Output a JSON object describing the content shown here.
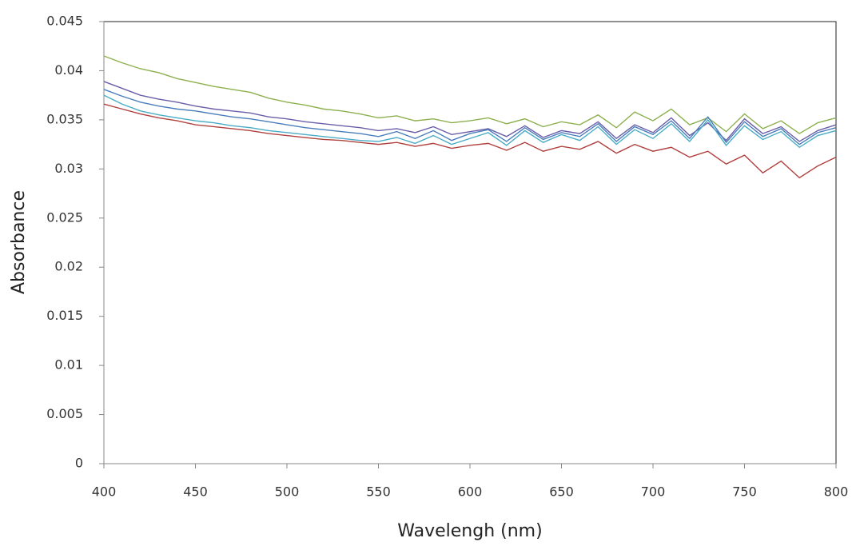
{
  "chart_data": {
    "type": "line",
    "x_label": "Wavelengh (nm)",
    "y_label": "Absorbance",
    "x": [
      400,
      410,
      420,
      430,
      440,
      450,
      460,
      470,
      480,
      490,
      500,
      510,
      520,
      530,
      540,
      550,
      560,
      570,
      580,
      590,
      600,
      610,
      620,
      630,
      640,
      650,
      660,
      670,
      680,
      690,
      700,
      710,
      720,
      730,
      740,
      750,
      760,
      770,
      780,
      790,
      800
    ],
    "series": [
      {
        "color": "#8db04f",
        "values": [
          0.0415,
          0.0408,
          0.0402,
          0.0398,
          0.0392,
          0.0388,
          0.0384,
          0.0381,
          0.0378,
          0.0372,
          0.0368,
          0.0365,
          0.0361,
          0.0359,
          0.0356,
          0.0352,
          0.0354,
          0.0349,
          0.0351,
          0.0347,
          0.0349,
          0.0352,
          0.0346,
          0.0351,
          0.0343,
          0.0348,
          0.0345,
          0.0355,
          0.0342,
          0.0358,
          0.0349,
          0.0361,
          0.0345,
          0.0352,
          0.0338,
          0.0356,
          0.0341,
          0.0349,
          0.0336,
          0.0347,
          0.0352
        ]
      },
      {
        "color": "#b0413e",
        "values": [
          0.0366,
          0.0361,
          0.0356,
          0.0352,
          0.0349,
          0.0345,
          0.0343,
          0.0341,
          0.0339,
          0.0336,
          0.0334,
          0.0332,
          0.033,
          0.0329,
          0.0327,
          0.0325,
          0.0327,
          0.0323,
          0.0326,
          0.0321,
          0.0324,
          0.0326,
          0.0319,
          0.0327,
          0.0318,
          0.0323,
          0.032,
          0.0328,
          0.0316,
          0.0325,
          0.0318,
          0.0322,
          0.0312,
          0.0318,
          0.0305,
          0.0314,
          0.0296,
          0.0308,
          0.0291,
          0.0303,
          0.0312
        ]
      },
      {
        "color": "#6b5ea8",
        "values": [
          0.0389,
          0.0382,
          0.0375,
          0.0371,
          0.0368,
          0.0364,
          0.0361,
          0.0359,
          0.0357,
          0.0353,
          0.0351,
          0.0348,
          0.0346,
          0.0344,
          0.0342,
          0.0339,
          0.0341,
          0.0337,
          0.0343,
          0.0335,
          0.0338,
          0.0341,
          0.0333,
          0.0344,
          0.0332,
          0.0339,
          0.0336,
          0.0348,
          0.0331,
          0.0345,
          0.0337,
          0.0352,
          0.0334,
          0.0347,
          0.0329,
          0.0351,
          0.0336,
          0.0343,
          0.0328,
          0.0339,
          0.0345
        ]
      },
      {
        "color": "#4a7ebb",
        "values": [
          0.0381,
          0.0374,
          0.0368,
          0.0364,
          0.0361,
          0.0359,
          0.0356,
          0.0353,
          0.0351,
          0.0348,
          0.0345,
          0.0342,
          0.034,
          0.0338,
          0.0336,
          0.0333,
          0.0338,
          0.0331,
          0.0339,
          0.0329,
          0.0336,
          0.034,
          0.0328,
          0.0342,
          0.033,
          0.0337,
          0.0333,
          0.0346,
          0.0328,
          0.0343,
          0.0335,
          0.0349,
          0.0331,
          0.0353,
          0.0327,
          0.0348,
          0.0333,
          0.0341,
          0.0325,
          0.0337,
          0.0342
        ]
      },
      {
        "color": "#4aacc6",
        "values": [
          0.0375,
          0.0366,
          0.0359,
          0.0355,
          0.0352,
          0.0349,
          0.0347,
          0.0344,
          0.0342,
          0.0339,
          0.0337,
          0.0335,
          0.0333,
          0.0331,
          0.0329,
          0.0328,
          0.0332,
          0.0326,
          0.0334,
          0.0325,
          0.0331,
          0.0337,
          0.0324,
          0.0339,
          0.0327,
          0.0335,
          0.0329,
          0.0343,
          0.0325,
          0.034,
          0.0331,
          0.0346,
          0.0328,
          0.035,
          0.0324,
          0.0344,
          0.033,
          0.0338,
          0.0322,
          0.0334,
          0.0339
        ]
      }
    ],
    "xlim": [
      400,
      800
    ],
    "xticks": [
      400,
      450,
      500,
      550,
      600,
      650,
      700,
      750,
      800
    ],
    "ylim": [
      0,
      0.045
    ],
    "yticks": [
      0,
      0.005,
      0.01,
      0.015,
      0.02,
      0.025,
      0.03,
      0.035,
      0.04,
      0.045
    ],
    "grid": false
  }
}
